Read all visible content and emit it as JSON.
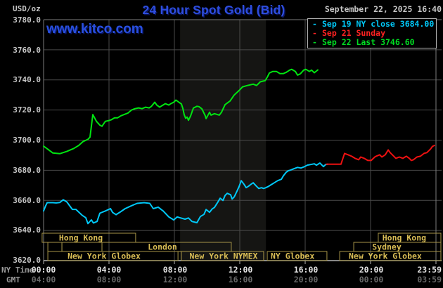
{
  "header": {
    "unit_label": "USD/oz",
    "title": "24 Hour Spot Gold (Bid)",
    "datetime": "September 22, 2025 16:40",
    "watermark": "www.kitco.com"
  },
  "colors": {
    "title_blue": "#2e4ede",
    "watermark_blue": "#2950e0",
    "sep19_cyan": "#00c8f8",
    "sep21_red": "#ee1republic111",
    "sep22_green": "#00dd22",
    "session_bar_border": "#a79548",
    "session_bar_text": "#d9bd55",
    "nymex_band": "#151513"
  },
  "legend": {
    "items": [
      {
        "dash": "-",
        "label": "Sep 19 NY close 3684.00",
        "color": "#00c8f8"
      },
      {
        "dash": "-",
        "label": "Sep 21 Sunday",
        "color": "#f22"
      },
      {
        "dash": "-",
        "label": "Sep 22 Last 3746.60",
        "color": "#0d2"
      }
    ]
  },
  "axes": {
    "y_ticks": [
      "3780.0",
      "3760.0",
      "3740.0",
      "3720.0",
      "3700.0",
      "3680.0",
      "3660.0",
      "3640.0",
      "3620.0"
    ],
    "x_ny_caption": "NY Time",
    "x_gmt_caption": "GMT",
    "x_ny_ticks": [
      "00:00",
      "04:00",
      "08:00",
      "12:00",
      "16:00",
      "20:00",
      "23:59"
    ],
    "x_gmt_ticks": [
      "04:00",
      "08:00",
      "12:00",
      "16:00",
      "20:00",
      "00:00",
      "03:59"
    ]
  },
  "chart_data": {
    "type": "line",
    "title": "24 Hour Spot Gold (Bid)",
    "ylabel": "USD/oz",
    "ylim": [
      3620,
      3780
    ],
    "xlim_hours": [
      0,
      24
    ],
    "grid": true,
    "legend_position": "top-right",
    "nymex_band_hours": [
      8.35,
      13.6
    ],
    "series": [
      {
        "name": "Sep 19 NY close",
        "color": "#00c8f8",
        "points": [
          [
            0.0,
            3653.0
          ],
          [
            0.13,
            3656.5
          ],
          [
            0.22,
            3658.5
          ],
          [
            0.56,
            3658.5
          ],
          [
            0.77,
            3658.3
          ],
          [
            0.99,
            3658.6
          ],
          [
            1.2,
            3660.4
          ],
          [
            1.42,
            3659.0
          ],
          [
            1.76,
            3654.0
          ],
          [
            1.98,
            3654.0
          ],
          [
            2.37,
            3650.0
          ],
          [
            2.58,
            3648.5
          ],
          [
            2.71,
            3644.6
          ],
          [
            2.92,
            3647.0
          ],
          [
            3.05,
            3645.0
          ],
          [
            3.27,
            3646.0
          ],
          [
            3.44,
            3651.5
          ],
          [
            3.78,
            3653.0
          ],
          [
            4.09,
            3654.5
          ],
          [
            4.22,
            3652.0
          ],
          [
            4.43,
            3650.5
          ],
          [
            4.65,
            3652.0
          ],
          [
            4.99,
            3654.5
          ],
          [
            5.38,
            3656.5
          ],
          [
            5.72,
            3658.0
          ],
          [
            6.15,
            3658.5
          ],
          [
            6.49,
            3658.0
          ],
          [
            6.71,
            3654.5
          ],
          [
            7.01,
            3655.5
          ],
          [
            7.31,
            3653.0
          ],
          [
            7.66,
            3649.0
          ],
          [
            7.96,
            3647.0
          ],
          [
            8.17,
            3649.0
          ],
          [
            8.39,
            3648.3
          ],
          [
            8.65,
            3647.5
          ],
          [
            8.86,
            3648.3
          ],
          [
            9.08,
            3646.0
          ],
          [
            9.38,
            3645.2
          ],
          [
            9.59,
            3649.3
          ],
          [
            9.81,
            3650.7
          ],
          [
            9.94,
            3653.9
          ],
          [
            10.15,
            3652.1
          ],
          [
            10.32,
            3654.4
          ],
          [
            10.45,
            3655.3
          ],
          [
            10.67,
            3659.1
          ],
          [
            10.8,
            3661.4
          ],
          [
            10.97,
            3660.0
          ],
          [
            11.1,
            3663.3
          ],
          [
            11.23,
            3664.7
          ],
          [
            11.44,
            3663.7
          ],
          [
            11.53,
            3660.9
          ],
          [
            11.66,
            3662.3
          ],
          [
            11.83,
            3666.1
          ],
          [
            11.96,
            3669.3
          ],
          [
            12.09,
            3673.1
          ],
          [
            12.26,
            3670.7
          ],
          [
            12.39,
            3668.4
          ],
          [
            12.52,
            3669.3
          ],
          [
            12.69,
            3670.7
          ],
          [
            12.82,
            3671.7
          ],
          [
            13.03,
            3669.3
          ],
          [
            13.16,
            3667.9
          ],
          [
            13.33,
            3668.4
          ],
          [
            13.46,
            3667.9
          ],
          [
            13.59,
            3668.4
          ],
          [
            13.76,
            3669.3
          ],
          [
            13.89,
            3670.2
          ],
          [
            14.11,
            3671.7
          ],
          [
            14.32,
            3673.1
          ],
          [
            14.54,
            3674.0
          ],
          [
            14.67,
            3676.4
          ],
          [
            14.84,
            3678.7
          ],
          [
            14.97,
            3679.7
          ],
          [
            15.1,
            3680.1
          ],
          [
            15.31,
            3681.0
          ],
          [
            15.53,
            3681.9
          ],
          [
            15.74,
            3681.5
          ],
          [
            15.96,
            3682.4
          ],
          [
            16.13,
            3683.4
          ],
          [
            16.34,
            3683.8
          ],
          [
            16.56,
            3684.3
          ],
          [
            16.69,
            3683.4
          ],
          [
            16.9,
            3684.8
          ],
          [
            17.12,
            3682.4
          ],
          [
            17.25,
            3683.8
          ],
          [
            17.38,
            3684.0
          ]
        ]
      },
      {
        "name": "Sep 21 Sunday",
        "color": "#ee1111",
        "points": [
          [
            17.29,
            3684.0
          ],
          [
            18.19,
            3684.0
          ],
          [
            18.28,
            3687.0
          ],
          [
            18.41,
            3691.2
          ],
          [
            18.62,
            3690.3
          ],
          [
            18.84,
            3689.3
          ],
          [
            19.05,
            3687.9
          ],
          [
            19.27,
            3687.0
          ],
          [
            19.4,
            3688.8
          ],
          [
            19.61,
            3687.9
          ],
          [
            19.83,
            3686.5
          ],
          [
            20.04,
            3686.5
          ],
          [
            20.26,
            3688.8
          ],
          [
            20.34,
            3689.3
          ],
          [
            20.56,
            3690.3
          ],
          [
            20.69,
            3688.8
          ],
          [
            20.9,
            3690.3
          ],
          [
            21.08,
            3693.5
          ],
          [
            21.2,
            3691.7
          ],
          [
            21.33,
            3690.3
          ],
          [
            21.55,
            3687.9
          ],
          [
            21.76,
            3688.8
          ],
          [
            21.98,
            3687.9
          ],
          [
            22.19,
            3689.3
          ],
          [
            22.37,
            3687.9
          ],
          [
            22.49,
            3686.5
          ],
          [
            22.62,
            3687.0
          ],
          [
            22.84,
            3688.8
          ],
          [
            23.05,
            3689.3
          ],
          [
            23.27,
            3691.2
          ],
          [
            23.44,
            3691.7
          ],
          [
            23.66,
            3694.0
          ],
          [
            23.78,
            3695.8
          ],
          [
            23.91,
            3696.5
          ]
        ]
      },
      {
        "name": "Sep 22 Last",
        "color": "#00e411",
        "points": [
          [
            0.0,
            3696.0
          ],
          [
            0.26,
            3694.0
          ],
          [
            0.56,
            3691.5
          ],
          [
            0.99,
            3691.0
          ],
          [
            1.42,
            3692.5
          ],
          [
            1.85,
            3694.5
          ],
          [
            2.15,
            3696.5
          ],
          [
            2.41,
            3699.0
          ],
          [
            2.71,
            3700.5
          ],
          [
            2.84,
            3702.0
          ],
          [
            3.01,
            3717.0
          ],
          [
            3.23,
            3712.5
          ],
          [
            3.44,
            3710.0
          ],
          [
            3.57,
            3709.2
          ],
          [
            3.78,
            3712.5
          ],
          [
            4.0,
            3713.0
          ],
          [
            4.13,
            3713.5
          ],
          [
            4.34,
            3714.8
          ],
          [
            4.52,
            3714.8
          ],
          [
            4.73,
            3716.2
          ],
          [
            4.95,
            3717.1
          ],
          [
            5.16,
            3718.0
          ],
          [
            5.38,
            3720.0
          ],
          [
            5.59,
            3720.9
          ],
          [
            5.81,
            3721.4
          ],
          [
            6.02,
            3720.9
          ],
          [
            6.24,
            3721.9
          ],
          [
            6.45,
            3721.4
          ],
          [
            6.58,
            3722.3
          ],
          [
            6.8,
            3725.2
          ],
          [
            6.92,
            3723.3
          ],
          [
            7.1,
            3721.9
          ],
          [
            7.23,
            3722.8
          ],
          [
            7.44,
            3724.2
          ],
          [
            7.66,
            3723.3
          ],
          [
            7.78,
            3724.2
          ],
          [
            7.96,
            3725.2
          ],
          [
            8.09,
            3726.6
          ],
          [
            8.22,
            3725.6
          ],
          [
            8.43,
            3724.0
          ],
          [
            8.52,
            3721.0
          ],
          [
            8.6,
            3717.0
          ],
          [
            8.69,
            3714.5
          ],
          [
            8.78,
            3715.3
          ],
          [
            8.86,
            3713.2
          ],
          [
            8.99,
            3716.0
          ],
          [
            9.16,
            3721.3
          ],
          [
            9.38,
            3722.5
          ],
          [
            9.51,
            3722.2
          ],
          [
            9.68,
            3720.8
          ],
          [
            9.89,
            3716.2
          ],
          [
            9.94,
            3714.3
          ],
          [
            10.15,
            3718.5
          ],
          [
            10.24,
            3716.6
          ],
          [
            10.45,
            3717.6
          ],
          [
            10.75,
            3716.6
          ],
          [
            10.88,
            3718.5
          ],
          [
            11.1,
            3723.6
          ],
          [
            11.4,
            3726.0
          ],
          [
            11.66,
            3730.0
          ],
          [
            11.96,
            3733.0
          ],
          [
            12.17,
            3735.4
          ],
          [
            12.47,
            3736.3
          ],
          [
            12.82,
            3737.2
          ],
          [
            13.03,
            3736.3
          ],
          [
            13.25,
            3738.7
          ],
          [
            13.55,
            3739.5
          ],
          [
            13.68,
            3741.8
          ],
          [
            13.81,
            3744.6
          ],
          [
            14.02,
            3745.6
          ],
          [
            14.24,
            3745.6
          ],
          [
            14.45,
            3744.2
          ],
          [
            14.67,
            3744.2
          ],
          [
            14.84,
            3745.0
          ],
          [
            15.05,
            3746.5
          ],
          [
            15.18,
            3747.0
          ],
          [
            15.4,
            3745.6
          ],
          [
            15.53,
            3743.2
          ],
          [
            15.7,
            3744.0
          ],
          [
            15.91,
            3746.5
          ],
          [
            16.04,
            3747.0
          ],
          [
            16.26,
            3745.6
          ],
          [
            16.39,
            3746.5
          ],
          [
            16.56,
            3744.8
          ],
          [
            16.77,
            3746.6
          ]
        ]
      }
    ],
    "sessions": [
      {
        "row": 0,
        "from": -0.09,
        "to": 5.63,
        "label": "Hong Kong",
        "label_hour": 2.28
      },
      {
        "row": 0,
        "from": 20.47,
        "to": 24.3,
        "label": "Hong Kong",
        "label_hour": 22.06
      },
      {
        "row": 1,
        "from": 0.26,
        "to": 1.12
      },
      {
        "row": 1,
        "from": 1.12,
        "to": 3.57
      },
      {
        "row": 1,
        "from": 3.57,
        "to": 11.48,
        "label": "London",
        "label_hour": 7.27
      },
      {
        "row": 1,
        "from": 18.97,
        "to": 24.3,
        "label": "Sydney",
        "label_hour": 20.99
      },
      {
        "row": 2,
        "from": 0.26,
        "to": 8.22,
        "label": "New York Globex",
        "label_hour": 3.7
      },
      {
        "row": 2,
        "from": 8.43,
        "to": 13.46,
        "label": "New York NYMEX",
        "label_hour": 11.01
      },
      {
        "row": 2,
        "from": 13.68,
        "to": 17.33,
        "label": "NY Globex",
        "label_hour": 15.23
      },
      {
        "row": 2,
        "from": 18.11,
        "to": 24.3,
        "label": "New York Globex",
        "label_hour": 20.9
      }
    ]
  }
}
